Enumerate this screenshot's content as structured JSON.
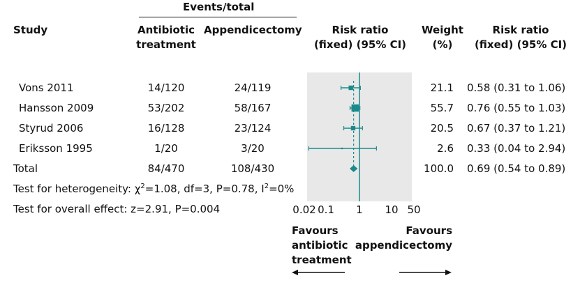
{
  "headers": {
    "events_total": "Events/total",
    "study": "Study",
    "antibiotic_1": "Antibiotic",
    "antibiotic_2": "treatment",
    "appendicectomy": "Appendicectomy",
    "rr_1": "Risk ratio",
    "rr_2": "(fixed) (95% CI)",
    "weight_1": "Weight",
    "weight_2": "(%)",
    "rrci_1": "Risk ratio",
    "rrci_2": "(fixed) (95% CI)"
  },
  "rows": [
    {
      "study": "Vons 2011",
      "antibiotic": "14/120",
      "appendicectomy": "24/119",
      "weight": "21.1",
      "rr_text": "0.58 (0.31 to 1.06)"
    },
    {
      "study": "Hansson 2009",
      "antibiotic": "53/202",
      "appendicectomy": "58/167",
      "weight": "55.7",
      "rr_text": "0.76 (0.55 to 1.03)"
    },
    {
      "study": "Styrud 2006",
      "antibiotic": "16/128",
      "appendicectomy": "23/124",
      "weight": "20.5",
      "rr_text": "0.67 (0.37 to 1.21)"
    },
    {
      "study": "Eriksson 1995",
      "antibiotic": "1/20",
      "appendicectomy": "3/20",
      "weight": "2.6",
      "rr_text": "0.33 (0.04 to 2.94)"
    }
  ],
  "total": {
    "label": "Total",
    "antibiotic": "84/470",
    "appendicectomy": "108/430",
    "weight": "100.0",
    "rr_text": "0.69 (0.54 to 0.89)"
  },
  "heterogeneity": {
    "prefix": "Test for heterogeneity: ",
    "chi": "χ",
    "chi_sup": "2",
    "middle": "=1.08, df=3, P=0.78, I",
    "i_sup": "2",
    "suffix": "=0%"
  },
  "overall_effect": "Test for overall effect: z=2.91, P=0.004",
  "axis_tick_labels": [
    "0.02",
    "0.1",
    "1",
    "10",
    "50"
  ],
  "favours_left": [
    "Favours",
    "antibiotic",
    "treatment"
  ],
  "favours_right": [
    "Favours",
    "appendicectomy"
  ],
  "colors": {
    "accent": "#1a8a8a",
    "panel": "#e8e8e8",
    "text": "#111111"
  },
  "chart_data": {
    "type": "forest",
    "title": "Risk ratio (fixed) (95% CI)",
    "scale": "log",
    "xlim": [
      0.02,
      50
    ],
    "xticks": [
      0.02,
      0.1,
      1,
      10,
      50
    ],
    "null_line": 1,
    "studies": [
      {
        "name": "Vons 2011",
        "rr": 0.58,
        "lower": 0.31,
        "upper": 1.06,
        "weight": 21.1
      },
      {
        "name": "Hansson 2009",
        "rr": 0.76,
        "lower": 0.55,
        "upper": 1.03,
        "weight": 55.7
      },
      {
        "name": "Styrud 2006",
        "rr": 0.67,
        "lower": 0.37,
        "upper": 1.21,
        "weight": 20.5
      },
      {
        "name": "Eriksson 1995",
        "rr": 0.33,
        "lower": 0.04,
        "upper": 2.94,
        "weight": 2.6
      }
    ],
    "pooled": {
      "rr": 0.69,
      "lower": 0.54,
      "upper": 0.89
    }
  }
}
